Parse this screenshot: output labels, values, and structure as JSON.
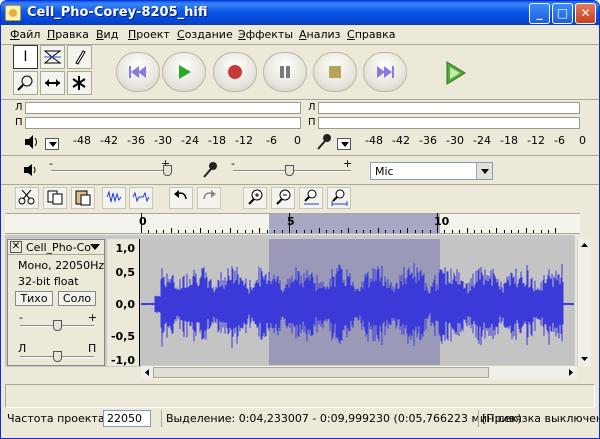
{
  "window": {
    "title": "Cell_Pho-Corey-8205_hifi",
    "controls": {
      "minimize": "_",
      "maximize": "□",
      "close": "✕"
    }
  },
  "menu": [
    {
      "label": "Файл",
      "mnemonic": "Ф",
      "rest": "айл"
    },
    {
      "label": "Правка",
      "mnemonic": "П",
      "rest": "равка"
    },
    {
      "label": "Вид",
      "mnemonic": "В",
      "rest": "ид"
    },
    {
      "label": "Проект",
      "mnemonic": "П",
      "rest": "роект"
    },
    {
      "label": "Создание",
      "mnemonic": "С",
      "rest": "оздание"
    },
    {
      "label": "Эффекты",
      "mnemonic": "Э",
      "rest": "ффекты"
    },
    {
      "label": "Анализ",
      "mnemonic": "А",
      "rest": "нализ"
    },
    {
      "label": "Справка",
      "mnemonic": "С",
      "rest": "правка"
    }
  ],
  "tools": [
    "selection-tool",
    "envelope-tool",
    "draw-tool",
    "zoom-tool",
    "time-shift-tool",
    "multi-tool"
  ],
  "transport": {
    "skip_start_color": "#8a7ae0",
    "play_color": "#2fa52f",
    "record_color": "#c83a3a",
    "pause_color": "#7a7a7a",
    "stop_color": "#b4a55a",
    "skip_end_color": "#8a7ae0"
  },
  "meters": {
    "left_channel": "Л",
    "right_channel": "П",
    "playback_scale": [
      "-48",
      "-42",
      "-36",
      "-30",
      "-24",
      "-18",
      "-12",
      "-6",
      "0"
    ],
    "record_scale": [
      "-48",
      "-42",
      "-36",
      "-30",
      "-24",
      "-18",
      "-12",
      "-6",
      "0"
    ]
  },
  "mixer": {
    "minus": "-",
    "plus": "+",
    "input_source": "Mic"
  },
  "ruler": {
    "labels": [
      "0",
      "5",
      "10"
    ]
  },
  "track": {
    "name": "Cell_Pho-Co",
    "format": "Моно, 22050Hz",
    "bit_depth": "32-bit float",
    "mute_label": "Тихо",
    "solo_label": "Соло",
    "gain_minus": "-",
    "gain_plus": "+",
    "pan_left": "Л",
    "pan_right": "П",
    "wave_color": "#3a3ad8",
    "vruler": [
      "1,0",
      "0,5",
      "0,0",
      "-0,5",
      "-1,0"
    ]
  },
  "status": {
    "rate_label": "Частота проекта:",
    "rate_value": "22050",
    "selection_text": "Выделение: 0:04,233007 - 0:09,999230 (0:05,766223 мин:сек)",
    "snap_text": "[Привязка выключена]"
  }
}
